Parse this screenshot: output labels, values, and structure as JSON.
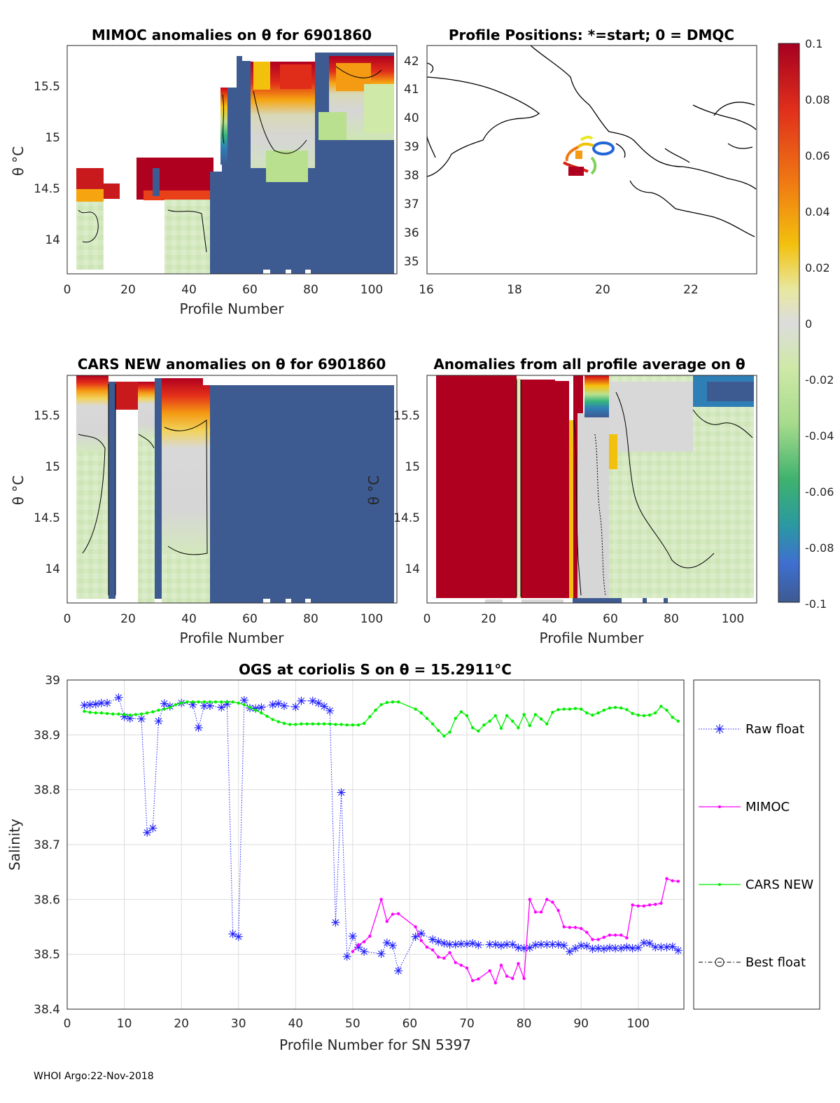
{
  "footer": "WHOI Argo:22-Nov-2018",
  "colorbar": {
    "ticks": [
      "0.1",
      "0.08",
      "0.06",
      "0.04",
      "0.02",
      "0",
      "-0.02",
      "-0.04",
      "-0.06",
      "-0.08",
      "-0.1"
    ],
    "range": [
      -0.1,
      0.1
    ]
  },
  "colors": {
    "raw_float": "#1f1fff",
    "mimoc": "#ff00ff",
    "cars_new": "#00ee00",
    "best_float": "#000000",
    "anomaly_high": "#b00020",
    "anomaly_low": "#3d5a91"
  },
  "panels": {
    "p1": {
      "title": "MIMOC anomalies on θ  for 6901860",
      "ylabel": "θ °C",
      "xlabel": "Profile Number",
      "xticks": [
        "0",
        "20",
        "40",
        "60",
        "80",
        "100"
      ],
      "yticks": [
        "15.5",
        "15",
        "14.5",
        "14"
      ]
    },
    "p2": {
      "title": "Profile Positions: *=start; 0 = DMQC",
      "xticks": [
        "16",
        "18",
        "20",
        "22"
      ],
      "yticks": [
        "42",
        "41",
        "40",
        "39",
        "38",
        "37",
        "36",
        "35"
      ]
    },
    "p3": {
      "title": "CARS NEW anomalies on θ for 6901860",
      "ylabel": "θ °C",
      "xlabel": "Profile Number",
      "xticks": [
        "0",
        "20",
        "40",
        "60",
        "80",
        "100"
      ],
      "yticks": [
        "15.5",
        "15",
        "14.5",
        "14"
      ]
    },
    "p4": {
      "title": "Anomalies from all profile average on θ",
      "ylabel": "θ °C",
      "xlabel": "Profile Number",
      "xticks": [
        "0",
        "20",
        "40",
        "60",
        "80",
        "100"
      ],
      "yticks": [
        "15.5",
        "15",
        "14.5",
        "14"
      ]
    }
  },
  "chart_data": {
    "type": "line",
    "title": "OGS at coriolis S on θ = 15.2911°C",
    "xlabel": "Profile Number for SN 5397",
    "ylabel": "Salinity",
    "xlim": [
      0,
      108
    ],
    "ylim": [
      38.4,
      39.0
    ],
    "xticks": [
      "0",
      "10",
      "20",
      "30",
      "40",
      "50",
      "60",
      "70",
      "80",
      "90",
      "100"
    ],
    "yticks": [
      "39",
      "38.9",
      "38.8",
      "38.7",
      "38.6",
      "38.5",
      "38.4"
    ],
    "legend_position": "right",
    "series": [
      {
        "name": "Raw float",
        "style": "dotted-asterisk",
        "points": [
          [
            3,
            38.954
          ],
          [
            4,
            38.955
          ],
          [
            5,
            38.956
          ],
          [
            6,
            38.958
          ],
          [
            7,
            38.958
          ],
          [
            9,
            38.968
          ],
          [
            10,
            38.933
          ],
          [
            11,
            38.93
          ],
          [
            13,
            38.929
          ],
          [
            14,
            38.722
          ],
          [
            15,
            38.73
          ],
          [
            16,
            38.925
          ],
          [
            17,
            38.957
          ],
          [
            18,
            38.952
          ],
          [
            20,
            38.958
          ],
          [
            22,
            38.955
          ],
          [
            23,
            38.913
          ],
          [
            24,
            38.953
          ],
          [
            25,
            38.953
          ],
          [
            27,
            38.95
          ],
          [
            28,
            38.956
          ],
          [
            29,
            38.537
          ],
          [
            30,
            38.532
          ],
          [
            31,
            38.963
          ],
          [
            32,
            38.949
          ],
          [
            33,
            38.948
          ],
          [
            34,
            38.95
          ],
          [
            36,
            38.955
          ],
          [
            37,
            38.957
          ],
          [
            38,
            38.953
          ],
          [
            40,
            38.951
          ],
          [
            41,
            38.962
          ],
          [
            43,
            38.962
          ],
          [
            44,
            38.958
          ],
          [
            45,
            38.952
          ],
          [
            46,
            38.944
          ],
          [
            47,
            38.558
          ],
          [
            48,
            38.795
          ],
          [
            49,
            38.496
          ],
          [
            50,
            38.533
          ],
          [
            51,
            38.513
          ],
          [
            52,
            38.505
          ],
          [
            55,
            38.501
          ],
          [
            56,
            38.521
          ],
          [
            57,
            38.516
          ],
          [
            58,
            38.47
          ],
          [
            61,
            38.532
          ],
          [
            62,
            38.538
          ],
          [
            64,
            38.527
          ],
          [
            65,
            38.523
          ],
          [
            66,
            38.52
          ],
          [
            67,
            38.518
          ],
          [
            68,
            38.518
          ],
          [
            69,
            38.519
          ],
          [
            70,
            38.519
          ],
          [
            71,
            38.52
          ],
          [
            72,
            38.517
          ],
          [
            74,
            38.518
          ],
          [
            75,
            38.518
          ],
          [
            76,
            38.516
          ],
          [
            77,
            38.518
          ],
          [
            78,
            38.518
          ],
          [
            79,
            38.512
          ],
          [
            80,
            38.511
          ],
          [
            81,
            38.512
          ],
          [
            82,
            38.517
          ],
          [
            83,
            38.518
          ],
          [
            84,
            38.518
          ],
          [
            85,
            38.518
          ],
          [
            86,
            38.518
          ],
          [
            87,
            38.516
          ],
          [
            88,
            38.505
          ],
          [
            89,
            38.511
          ],
          [
            90,
            38.516
          ],
          [
            91,
            38.515
          ],
          [
            92,
            38.51
          ],
          [
            93,
            38.511
          ],
          [
            94,
            38.51
          ],
          [
            95,
            38.512
          ],
          [
            96,
            38.511
          ],
          [
            97,
            38.511
          ],
          [
            98,
            38.513
          ],
          [
            99,
            38.511
          ],
          [
            100,
            38.512
          ],
          [
            101,
            38.521
          ],
          [
            102,
            38.52
          ],
          [
            103,
            38.513
          ],
          [
            104,
            38.513
          ],
          [
            105,
            38.513
          ],
          [
            106,
            38.514
          ],
          [
            107,
            38.507
          ]
        ]
      },
      {
        "name": "MIMOC",
        "style": "solid-dot",
        "points": [
          [
            50,
            38.505
          ],
          [
            51,
            38.517
          ],
          [
            52,
            38.523
          ],
          [
            53,
            38.533
          ],
          [
            55,
            38.6
          ],
          [
            56,
            38.56
          ],
          [
            57,
            38.573
          ],
          [
            58,
            38.574
          ],
          [
            61,
            38.55
          ],
          [
            62,
            38.525
          ],
          [
            63,
            38.513
          ],
          [
            64,
            38.508
          ],
          [
            65,
            38.495
          ],
          [
            66,
            38.493
          ],
          [
            67,
            38.503
          ],
          [
            68,
            38.485
          ],
          [
            69,
            38.48
          ],
          [
            70,
            38.475
          ],
          [
            71,
            38.452
          ],
          [
            72,
            38.455
          ],
          [
            74,
            38.47
          ],
          [
            75,
            38.448
          ],
          [
            76,
            38.48
          ],
          [
            77,
            38.46
          ],
          [
            78,
            38.456
          ],
          [
            79,
            38.483
          ],
          [
            80,
            38.456
          ],
          [
            81,
            38.6
          ],
          [
            82,
            38.577
          ],
          [
            83,
            38.577
          ],
          [
            84,
            38.6
          ],
          [
            85,
            38.595
          ],
          [
            86,
            38.58
          ],
          [
            87,
            38.55
          ],
          [
            88,
            38.549
          ],
          [
            89,
            38.549
          ],
          [
            90,
            38.547
          ],
          [
            91,
            38.54
          ],
          [
            92,
            38.527
          ],
          [
            93,
            38.527
          ],
          [
            94,
            38.531
          ],
          [
            95,
            38.535
          ],
          [
            96,
            38.535
          ],
          [
            97,
            38.535
          ],
          [
            98,
            38.53
          ],
          [
            99,
            38.59
          ],
          [
            100,
            38.588
          ],
          [
            101,
            38.588
          ],
          [
            102,
            38.59
          ],
          [
            103,
            38.591
          ],
          [
            104,
            38.593
          ],
          [
            105,
            38.638
          ],
          [
            106,
            38.634
          ],
          [
            107,
            38.633
          ]
        ]
      },
      {
        "name": "CARS NEW",
        "style": "solid-dot",
        "points": [
          [
            3,
            38.943
          ],
          [
            4,
            38.941
          ],
          [
            5,
            38.94
          ],
          [
            6,
            38.94
          ],
          [
            7,
            38.939
          ],
          [
            8,
            38.938
          ],
          [
            9,
            38.938
          ],
          [
            10,
            38.937
          ],
          [
            11,
            38.936
          ],
          [
            12,
            38.937
          ],
          [
            13,
            38.938
          ],
          [
            14,
            38.94
          ],
          [
            15,
            38.942
          ],
          [
            16,
            38.945
          ],
          [
            17,
            38.947
          ],
          [
            18,
            38.95
          ],
          [
            19,
            38.955
          ],
          [
            20,
            38.958
          ],
          [
            21,
            38.96
          ],
          [
            22,
            38.96
          ],
          [
            23,
            38.96
          ],
          [
            24,
            38.96
          ],
          [
            25,
            38.96
          ],
          [
            26,
            38.96
          ],
          [
            27,
            38.96
          ],
          [
            28,
            38.96
          ],
          [
            29,
            38.96
          ],
          [
            30,
            38.958
          ],
          [
            31,
            38.955
          ],
          [
            32,
            38.95
          ],
          [
            33,
            38.945
          ],
          [
            34,
            38.94
          ],
          [
            35,
            38.934
          ],
          [
            36,
            38.928
          ],
          [
            37,
            38.924
          ],
          [
            38,
            38.921
          ],
          [
            39,
            38.919
          ],
          [
            40,
            38.919
          ],
          [
            41,
            38.92
          ],
          [
            42,
            38.92
          ],
          [
            43,
            38.92
          ],
          [
            44,
            38.92
          ],
          [
            45,
            38.92
          ],
          [
            46,
            38.92
          ],
          [
            47,
            38.919
          ],
          [
            48,
            38.919
          ],
          [
            49,
            38.918
          ],
          [
            50,
            38.918
          ],
          [
            51,
            38.918
          ],
          [
            52,
            38.921
          ],
          [
            53,
            38.933
          ],
          [
            54,
            38.945
          ],
          [
            55,
            38.955
          ],
          [
            56,
            38.959
          ],
          [
            57,
            38.96
          ],
          [
            58,
            38.96
          ],
          [
            61,
            38.947
          ],
          [
            62,
            38.94
          ],
          [
            63,
            38.93
          ],
          [
            64,
            38.92
          ],
          [
            65,
            38.908
          ],
          [
            66,
            38.898
          ],
          [
            67,
            38.905
          ],
          [
            68,
            38.93
          ],
          [
            69,
            38.942
          ],
          [
            70,
            38.935
          ],
          [
            71,
            38.913
          ],
          [
            72,
            38.907
          ],
          [
            73,
            38.918
          ],
          [
            74,
            38.925
          ],
          [
            75,
            38.935
          ],
          [
            76,
            38.912
          ],
          [
            77,
            38.935
          ],
          [
            78,
            38.925
          ],
          [
            79,
            38.913
          ],
          [
            80,
            38.937
          ],
          [
            81,
            38.917
          ],
          [
            82,
            38.937
          ],
          [
            83,
            38.929
          ],
          [
            84,
            38.92
          ],
          [
            85,
            38.941
          ],
          [
            86,
            38.946
          ],
          [
            87,
            38.947
          ],
          [
            88,
            38.947
          ],
          [
            89,
            38.948
          ],
          [
            90,
            38.947
          ],
          [
            91,
            38.94
          ],
          [
            92,
            38.936
          ],
          [
            93,
            38.94
          ],
          [
            94,
            38.945
          ],
          [
            95,
            38.949
          ],
          [
            96,
            38.95
          ],
          [
            97,
            38.949
          ],
          [
            98,
            38.946
          ],
          [
            99,
            38.939
          ],
          [
            100,
            38.936
          ],
          [
            101,
            38.935
          ],
          [
            102,
            38.936
          ],
          [
            103,
            38.94
          ],
          [
            104,
            38.952
          ],
          [
            105,
            38.945
          ],
          [
            106,
            38.932
          ],
          [
            107,
            38.925
          ]
        ]
      },
      {
        "name": "Best float",
        "style": "dashdot-circle",
        "points": []
      }
    ]
  }
}
